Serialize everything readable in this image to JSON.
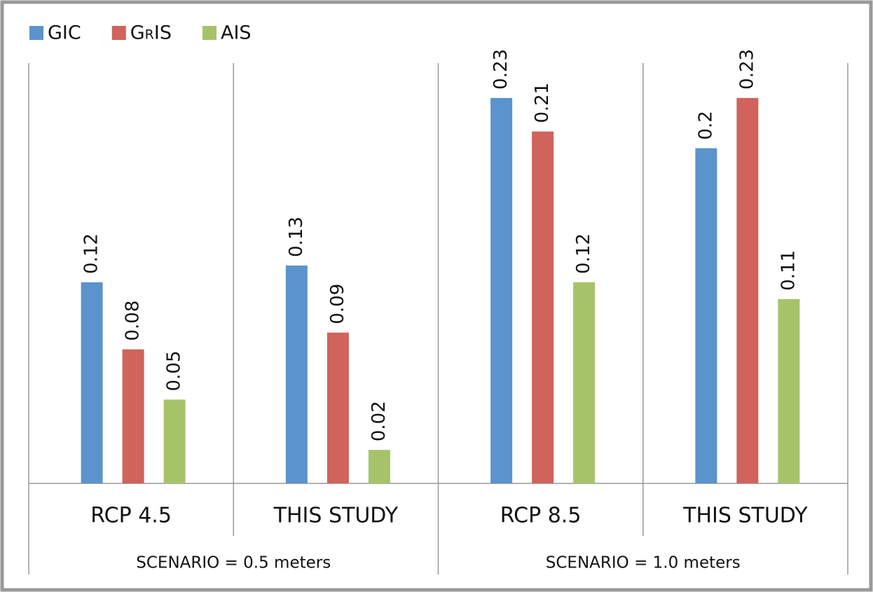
{
  "chart_data": {
    "type": "bar",
    "categories": [
      "RCP 4.5",
      "THIS STUDY",
      "RCP 8.5",
      "THIS STUDY"
    ],
    "groups": [
      "SCENARIO = 0.5 meters",
      "SCENARIO = 1.0 meters"
    ],
    "series": [
      {
        "name": "GIC",
        "color": "#5b93cc",
        "values": [
          0.12,
          0.13,
          0.23,
          0.2
        ]
      },
      {
        "name": "GrIS",
        "color": "#d0635c",
        "values": [
          0.08,
          0.09,
          0.21,
          0.23
        ]
      },
      {
        "name": "AIS",
        "color": "#a6c36a",
        "values": [
          0.05,
          0.02,
          0.12,
          0.11
        ]
      }
    ],
    "ylim": [
      0,
      0.25
    ],
    "legend": "top-left"
  }
}
